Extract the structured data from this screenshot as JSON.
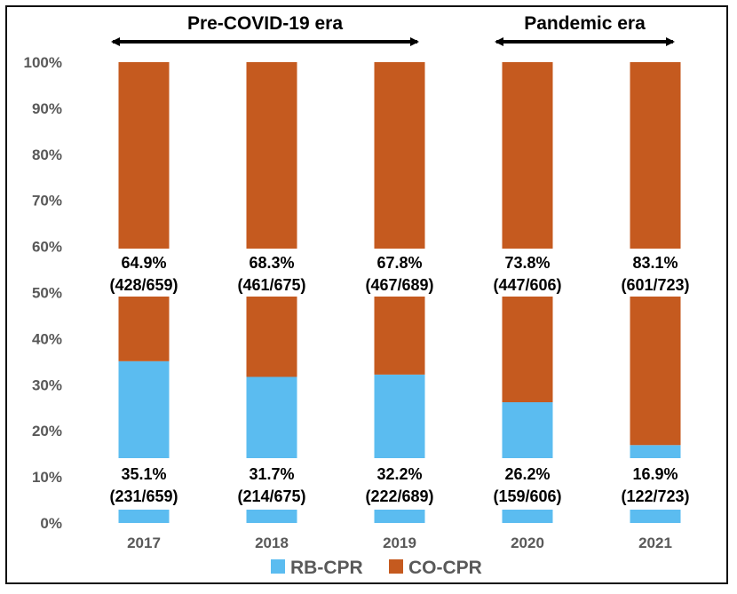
{
  "chart_data": {
    "type": "bar",
    "stacked": true,
    "normalized": true,
    "categories": [
      "2017",
      "2018",
      "2019",
      "2020",
      "2021"
    ],
    "series": [
      {
        "name": "RB-CPR",
        "color": "#5bbcf0",
        "values": [
          35.1,
          31.7,
          32.2,
          26.2,
          16.9
        ]
      },
      {
        "name": "CO-CPR",
        "color": "#c55a1f",
        "values": [
          64.9,
          68.3,
          67.8,
          73.8,
          83.1
        ]
      }
    ],
    "labels": {
      "RB-CPR": [
        {
          "pct": "35.1%",
          "count": "(231/659)"
        },
        {
          "pct": "31.7%",
          "count": "(214/675)"
        },
        {
          "pct": "32.2%",
          "count": "(222/689)"
        },
        {
          "pct": "26.2%",
          "count": "(159/606)"
        },
        {
          "pct": "16.9%",
          "count": "(122/723)"
        }
      ],
      "CO-CPR": [
        {
          "pct": "64.9%",
          "count": "(428/659)"
        },
        {
          "pct": "68.3%",
          "count": "(461/675)"
        },
        {
          "pct": "67.8%",
          "count": "(467/689)"
        },
        {
          "pct": "73.8%",
          "count": "(447/606)"
        },
        {
          "pct": "83.1%",
          "count": "(601/723)"
        }
      ]
    },
    "y_ticks": [
      "0%",
      "10%",
      "20%",
      "30%",
      "40%",
      "50%",
      "60%",
      "70%",
      "80%",
      "90%",
      "100%"
    ],
    "ylim": [
      0,
      100
    ],
    "grid": false,
    "legend_position": "bottom",
    "annotations": [
      {
        "text": "Pre-COVID-19 era",
        "span": [
          "2017",
          "2019"
        ]
      },
      {
        "text": "Pandemic era",
        "span": [
          "2020",
          "2021"
        ]
      }
    ]
  }
}
